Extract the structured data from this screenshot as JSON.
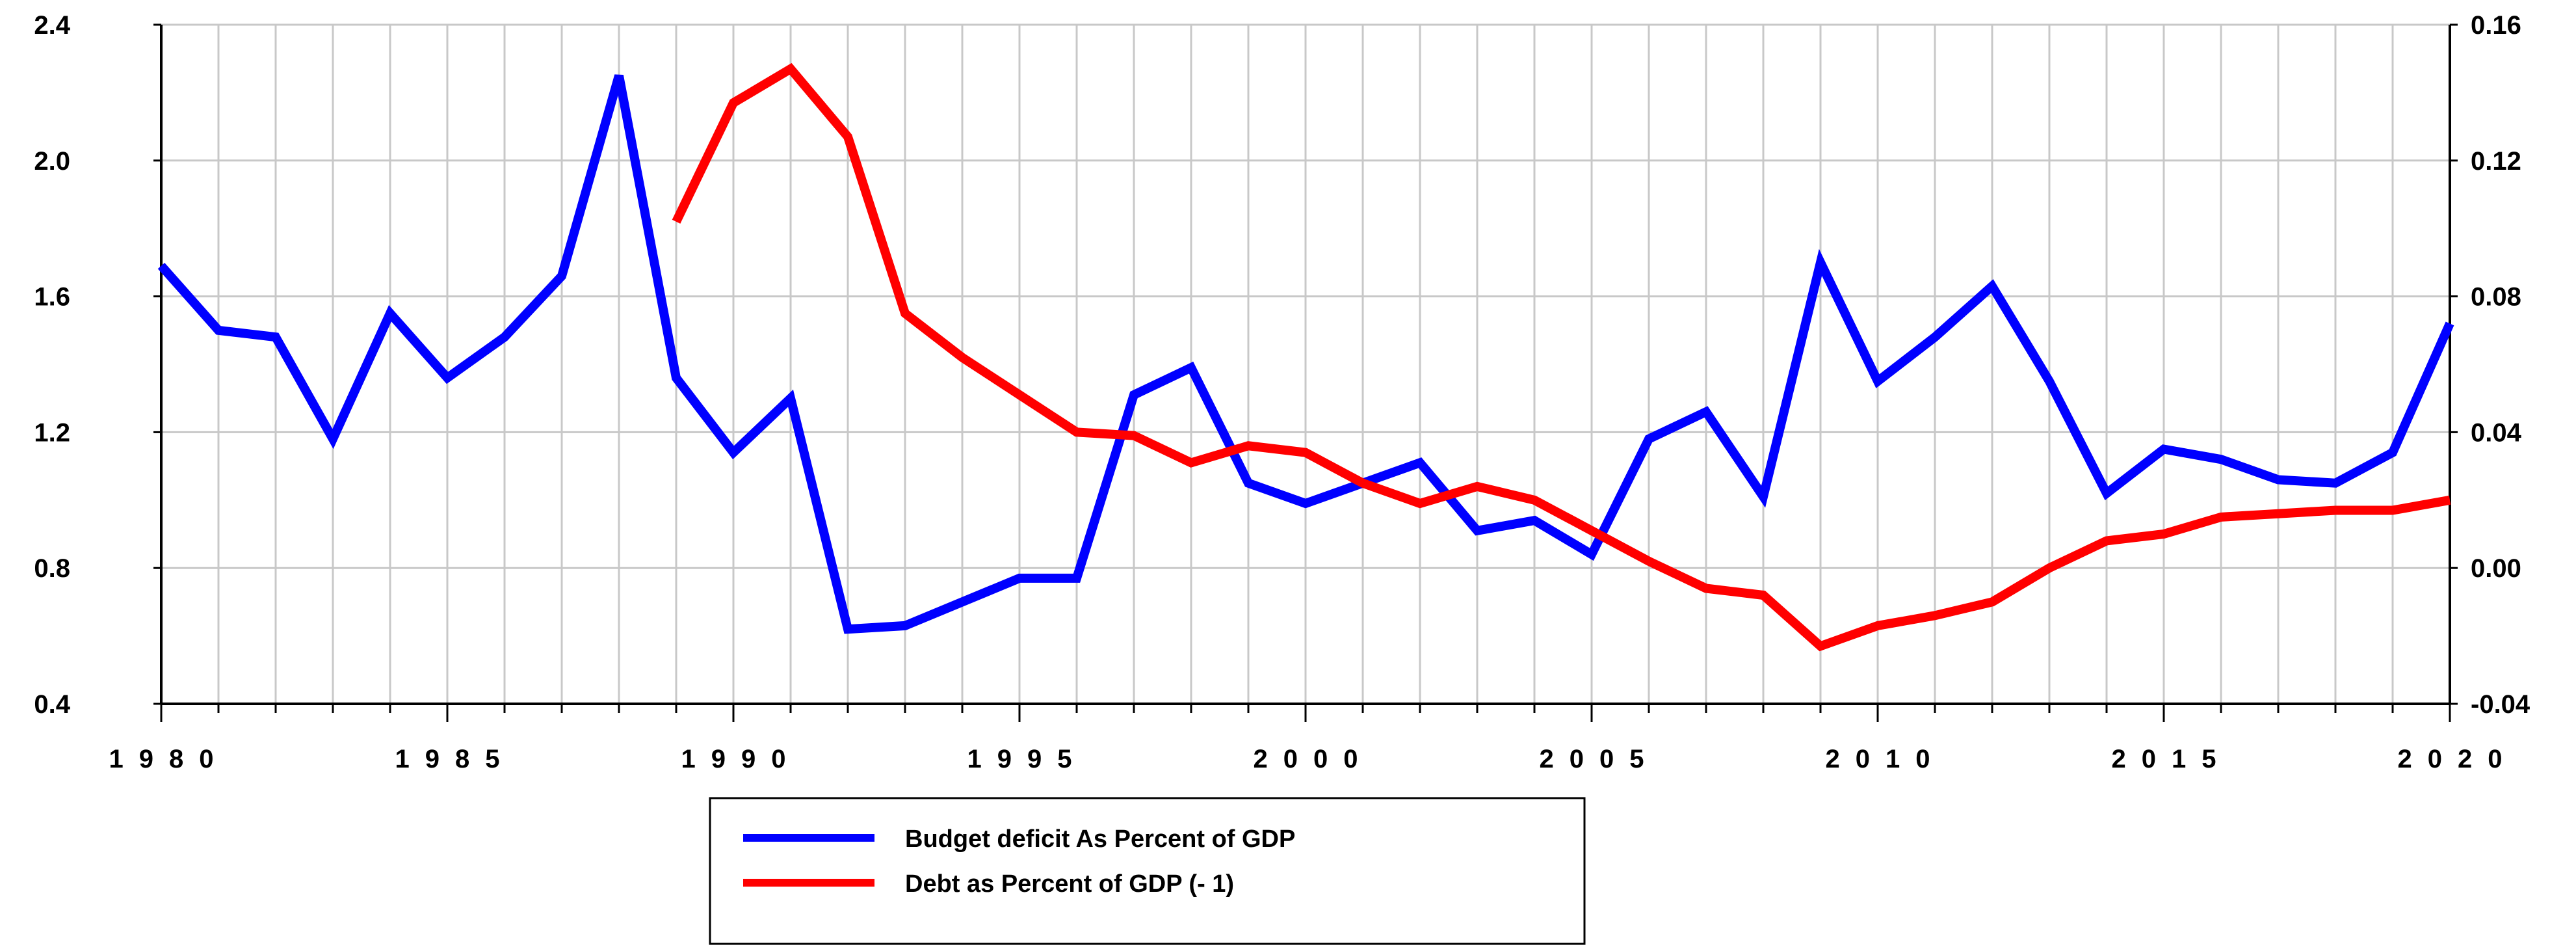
{
  "chart_data": {
    "type": "line",
    "title": "",
    "xlabel": "",
    "x_tick_labels": [
      "1980",
      "1985",
      "1990",
      "1995",
      "2000",
      "2005",
      "2010",
      "2015",
      "2020"
    ],
    "xlim": [
      1980,
      2020
    ],
    "left_axis": {
      "ylim": [
        0.4,
        2.4
      ],
      "ticks": [
        0.4,
        0.8,
        1.2,
        1.6,
        2.0,
        2.4
      ],
      "tick_labels": [
        "0.4",
        "0.8",
        "1.2",
        "1.6",
        "2.0",
        "2.4"
      ]
    },
    "right_axis": {
      "ylim": [
        -0.04,
        0.16
      ],
      "ticks": [
        -0.04,
        0.0,
        0.04,
        0.08,
        0.12,
        0.16
      ],
      "tick_labels": [
        "-0.04",
        "0.00",
        "0.04",
        "0.08",
        "0.12",
        "0.16"
      ]
    },
    "grid": true,
    "series": [
      {
        "name": "Budget deficit As Percent of GDP",
        "axis": "left",
        "color": "#0000ff",
        "x": [
          1980,
          1981,
          1982,
          1983,
          1984,
          1985,
          1986,
          1987,
          1988,
          1989,
          1990,
          1991,
          1992,
          1993,
          1994,
          1995,
          1996,
          1997,
          1998,
          1999,
          2000,
          2001,
          2002,
          2003,
          2004,
          2005,
          2006,
          2007,
          2008,
          2009,
          2010,
          2011,
          2012,
          2013,
          2014,
          2015,
          2016,
          2017,
          2018,
          2019,
          2020
        ],
        "values": [
          1.69,
          1.5,
          1.48,
          1.18,
          1.55,
          1.36,
          1.48,
          1.66,
          2.25,
          1.36,
          1.14,
          1.3,
          0.62,
          0.63,
          0.7,
          0.77,
          0.77,
          1.31,
          1.39,
          1.05,
          0.99,
          1.05,
          1.11,
          0.91,
          0.94,
          0.84,
          1.18,
          1.26,
          1.01,
          1.7,
          1.35,
          1.48,
          1.63,
          1.35,
          1.02,
          1.15,
          1.12,
          1.06,
          1.05,
          1.14,
          1.52
        ]
      },
      {
        "name": "Debt as Percent of GDP (- 1)",
        "axis": "right",
        "color": "#ff0000",
        "x": [
          1989,
          1990,
          1991,
          1992,
          1993,
          1994,
          1995,
          1996,
          1997,
          1998,
          1999,
          2000,
          2001,
          2002,
          2003,
          2004,
          2005,
          2006,
          2007,
          2008,
          2009,
          2010,
          2011,
          2012,
          2013,
          2014,
          2015,
          2016,
          2017,
          2018,
          2019,
          2020
        ],
        "values": [
          0.102,
          0.137,
          0.147,
          0.127,
          0.075,
          0.062,
          0.051,
          0.04,
          0.039,
          0.031,
          0.036,
          0.034,
          0.025,
          0.019,
          0.024,
          0.02,
          0.011,
          0.002,
          -0.006,
          -0.008,
          -0.023,
          -0.017,
          -0.014,
          -0.01,
          0.0,
          0.008,
          0.01,
          0.015,
          0.016,
          0.017,
          0.017,
          0.02
        ]
      }
    ],
    "legend": [
      "Budget deficit As Percent of GDP",
      "Debt as Percent of GDP (- 1)"
    ],
    "legend_position": "bottom-center"
  }
}
